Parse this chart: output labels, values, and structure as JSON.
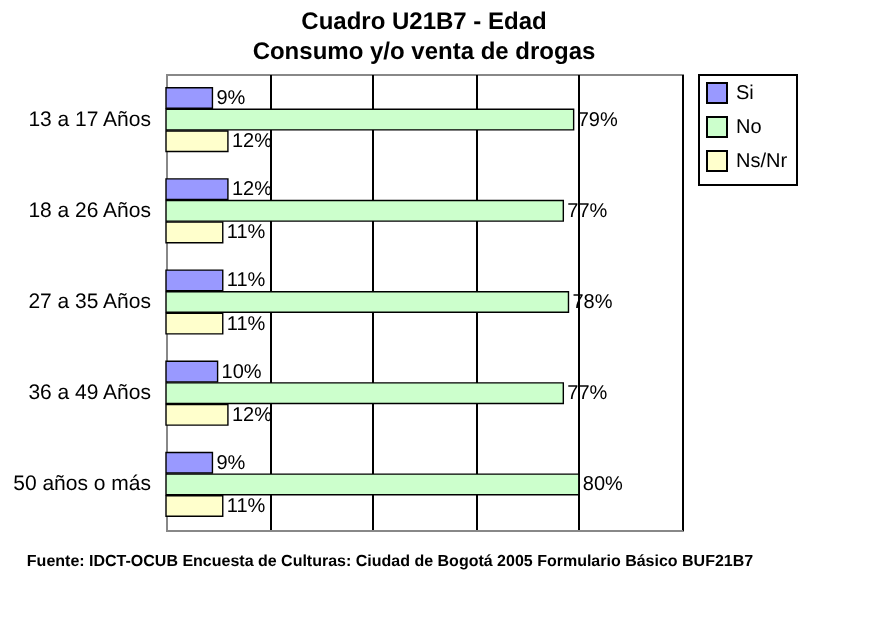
{
  "chart_data": {
    "type": "bar",
    "orientation": "horizontal",
    "title": "Cuadro U21B7 - Edad",
    "subtitle": "Consumo y/o venta de drogas",
    "categories": [
      "13 a 17 Años",
      "18 a 26 Años",
      "27 a 35 Años",
      "36 a 49 Años",
      "50 años o más"
    ],
    "series": [
      {
        "name": "Si",
        "color": "#9999ff",
        "values": [
          9,
          12,
          11,
          10,
          9
        ],
        "value_labels": [
          "9%",
          "12%",
          "11%",
          "10%",
          "9%"
        ]
      },
      {
        "name": "No",
        "color": "#ccffcc",
        "values": [
          79,
          77,
          78,
          77,
          80
        ],
        "value_labels": [
          "79%",
          "77%",
          "78%",
          "77%",
          "80%"
        ]
      },
      {
        "name": "Ns/Nr",
        "color": "#ffffcc",
        "values": [
          12,
          11,
          11,
          12,
          11
        ],
        "value_labels": [
          "12%",
          "11%",
          "11%",
          "12%",
          "11%"
        ]
      }
    ],
    "xlim": [
      0,
      100
    ],
    "xticks": [
      {
        "value": 0,
        "label": null
      },
      {
        "value": 20,
        "label": null
      },
      {
        "value": 40,
        "label": null
      },
      {
        "value": 60,
        "label": null
      },
      {
        "value": 80,
        "label": null
      },
      {
        "value": 100,
        "label": null
      }
    ],
    "grid": "x",
    "legend": "right",
    "annotations": [
      "Fuente: IDCT-OCUB Encuesta de Culturas: Ciudad de Bogotá 2005 Formulario Básico BUF21B7"
    ]
  }
}
